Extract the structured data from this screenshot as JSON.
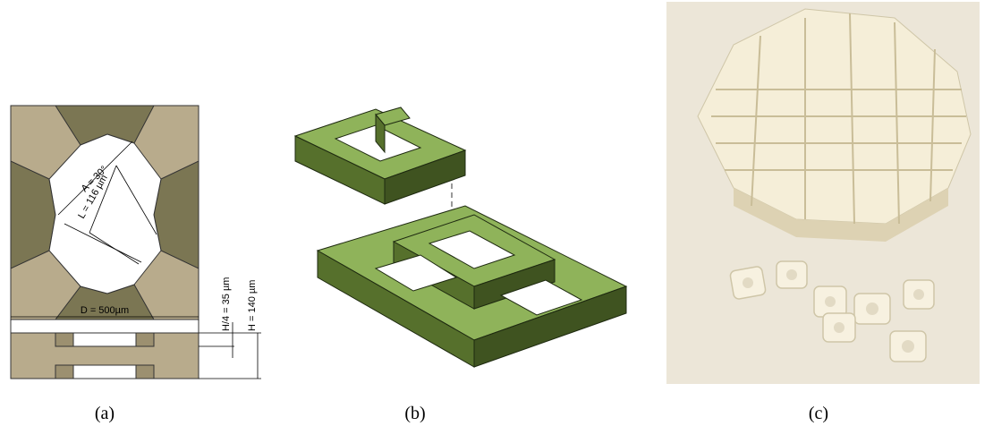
{
  "panel_a": {
    "angle_label": "A = 30°",
    "length_label": "L = 116 µm",
    "diameter_label": "D = 500µm",
    "quarter_height_label": "H/4 = 35 µm",
    "height_label": "H = 140 µm",
    "caption": "(a)"
  },
  "panel_b": {
    "caption": "(b)"
  },
  "panel_c": {
    "caption": "(c)"
  }
}
